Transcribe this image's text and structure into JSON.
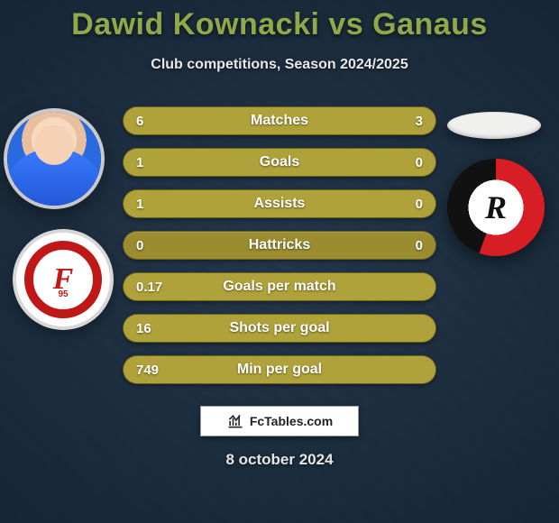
{
  "title_text": "Dawid Kownacki vs Ganaus",
  "title_color": "#8fa94a",
  "title_fontsize": 34,
  "subtitle_text": "Club competitions, Season 2024/2025",
  "subtitle_color": "#e8e8e8",
  "subtitle_fontsize": 16,
  "background_color": "#1a2b3d",
  "row_style": {
    "base_color": "#9a8c2f",
    "fill_color": "#b0a23a",
    "text_color": "#ffffff",
    "height": 32,
    "radius": 16,
    "value_fontsize": 15,
    "label_fontsize": 16
  },
  "rows": [
    {
      "label": "Matches",
      "left": "6",
      "right": "3",
      "fill_left_pct": 66,
      "fill_right_pct": 34
    },
    {
      "label": "Goals",
      "left": "1",
      "right": "0",
      "fill_left_pct": 100,
      "fill_right_pct": 0
    },
    {
      "label": "Assists",
      "left": "1",
      "right": "0",
      "fill_left_pct": 100,
      "fill_right_pct": 0
    },
    {
      "label": "Hattricks",
      "left": "0",
      "right": "0",
      "fill_left_pct": 0,
      "fill_right_pct": 0
    },
    {
      "label": "Goals per match",
      "left": "0.17",
      "right": "",
      "fill_left_pct": 100,
      "fill_right_pct": 0
    },
    {
      "label": "Shots per goal",
      "left": "16",
      "right": "",
      "fill_left_pct": 100,
      "fill_right_pct": 0
    },
    {
      "label": "Min per goal",
      "left": "749",
      "right": "",
      "fill_left_pct": 100,
      "fill_right_pct": 0
    }
  ],
  "crest_left": {
    "big": "F",
    "small": "95",
    "ring_color": "#c01717",
    "bg": "#ffffff"
  },
  "crest_right": {
    "letter": "R",
    "red": "#d81e25",
    "black": "#111111",
    "bg": "#ffffff"
  },
  "brand": {
    "pre": "Fc",
    "bold": "Tables",
    "suffix": ".com",
    "icon_color": "#2a2a2a"
  },
  "date_text": "8 october 2024"
}
